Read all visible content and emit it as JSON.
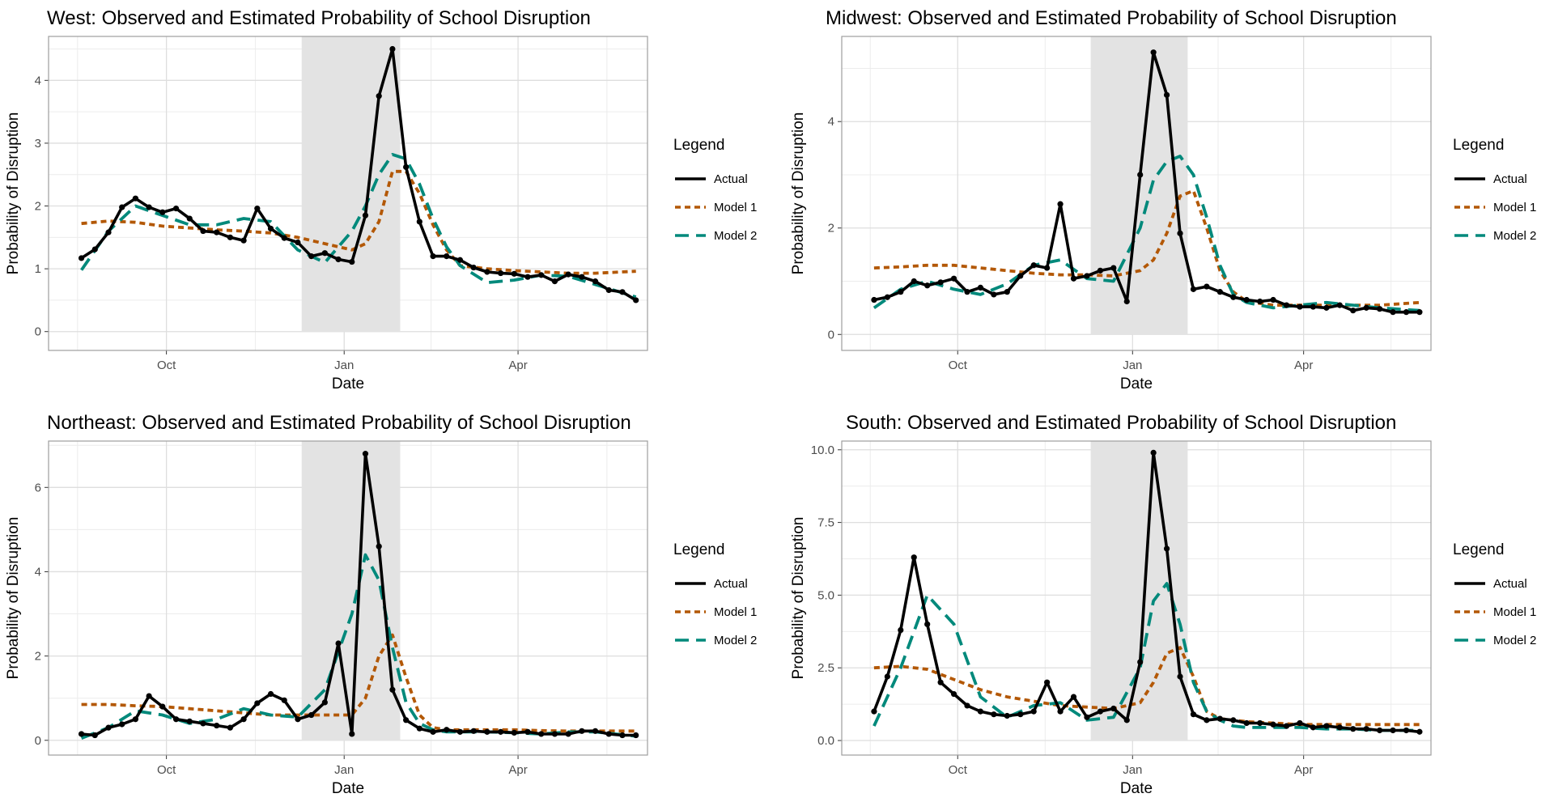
{
  "legend": {
    "title": "Legend",
    "items": [
      {
        "label": "Actual",
        "color": "#000000",
        "dash": "solid"
      },
      {
        "label": "Model 1",
        "color": "#b35806",
        "dash": "dotted"
      },
      {
        "label": "Model 2",
        "color": "#00897b",
        "dash": "dashed"
      }
    ]
  },
  "chart_data": [
    {
      "type": "line",
      "title": "West: Observed and Estimated Probability of School Disruption",
      "xlabel": "Date",
      "ylabel": "Probability of Disruption",
      "x_ticks": [
        "Oct",
        "Jan",
        "Apr"
      ],
      "y_ticks": [
        "0",
        "1",
        "2",
        "3",
        "4"
      ],
      "ylim": [
        -0.3,
        4.7
      ],
      "shaded_region": [
        "Dec 10",
        "Jan 30"
      ],
      "grid": true,
      "legend_position": "right",
      "series": [
        {
          "name": "Actual",
          "x": [
            "Aug 18",
            "Aug 25",
            "Sep 1",
            "Sep 8",
            "Sep 15",
            "Sep 22",
            "Sep 29",
            "Oct 6",
            "Oct 13",
            "Oct 20",
            "Oct 27",
            "Nov 3",
            "Nov 10",
            "Nov 17",
            "Nov 24",
            "Dec 1",
            "Dec 8",
            "Dec 15",
            "Dec 22",
            "Dec 29",
            "Jan 5",
            "Jan 12",
            "Jan 19",
            "Jan 26",
            "Feb 2",
            "Feb 9",
            "Feb 16",
            "Feb 23",
            "Mar 2",
            "Mar 9",
            "Mar 16",
            "Mar 23",
            "Mar 30",
            "Apr 6",
            "Apr 13",
            "Apr 20",
            "Apr 27",
            "May 4",
            "May 11",
            "May 18",
            "May 25",
            "Jun 1"
          ],
          "values": [
            1.17,
            1.31,
            1.58,
            1.98,
            2.12,
            1.98,
            1.9,
            1.96,
            1.8,
            1.6,
            1.58,
            1.5,
            1.45,
            1.96,
            1.64,
            1.49,
            1.42,
            1.2,
            1.25,
            1.15,
            1.11,
            1.85,
            3.75,
            4.5,
            2.62,
            1.75,
            1.2,
            1.2,
            1.14,
            1.02,
            0.95,
            0.93,
            0.92,
            0.87,
            0.9,
            0.8,
            0.91,
            0.87,
            0.8,
            0.66,
            0.63,
            0.5
          ]
        },
        {
          "name": "Model 1",
          "x": [
            "Aug 18",
            "Sep 1",
            "Sep 15",
            "Sep 29",
            "Oct 13",
            "Oct 27",
            "Nov 10",
            "Nov 24",
            "Dec 8",
            "Dec 22",
            "Jan 5",
            "Jan 12",
            "Jan 19",
            "Jan 26",
            "Feb 2",
            "Feb 9",
            "Feb 16",
            "Feb 23",
            "Mar 2",
            "Mar 16",
            "Mar 30",
            "Apr 13",
            "Apr 27",
            "May 11",
            "Jun 1"
          ],
          "values": [
            1.72,
            1.76,
            1.74,
            1.68,
            1.65,
            1.62,
            1.6,
            1.57,
            1.5,
            1.4,
            1.3,
            1.4,
            1.75,
            2.55,
            2.55,
            2.2,
            1.7,
            1.3,
            1.05,
            1.0,
            0.97,
            0.95,
            0.93,
            0.93,
            0.96
          ]
        },
        {
          "name": "Model 2",
          "x": [
            "Aug 18",
            "Sep 1",
            "Sep 15",
            "Sep 29",
            "Oct 13",
            "Oct 27",
            "Nov 10",
            "Nov 24",
            "Dec 8",
            "Dec 22",
            "Jan 5",
            "Jan 12",
            "Jan 19",
            "Jan 26",
            "Feb 2",
            "Feb 9",
            "Feb 16",
            "Feb 23",
            "Mar 2",
            "Mar 16",
            "Mar 30",
            "Apr 13",
            "Apr 27",
            "May 11",
            "Jun 1"
          ],
          "values": [
            0.98,
            1.6,
            2.0,
            1.85,
            1.7,
            1.7,
            1.8,
            1.75,
            1.3,
            1.1,
            1.6,
            2.0,
            2.5,
            2.82,
            2.75,
            2.35,
            1.8,
            1.35,
            1.05,
            0.78,
            0.82,
            0.9,
            0.88,
            0.75,
            0.55
          ]
        }
      ]
    },
    {
      "type": "line",
      "title": "Midwest: Observed and Estimated Probability of School Disruption",
      "xlabel": "Date",
      "ylabel": "Probability of Disruption",
      "x_ticks": [
        "Oct",
        "Jan",
        "Apr"
      ],
      "y_ticks": [
        "0",
        "2",
        "4"
      ],
      "ylim": [
        -0.3,
        5.6
      ],
      "shaded_region": [
        "Dec 10",
        "Jan 30"
      ],
      "grid": true,
      "legend_position": "right",
      "series": [
        {
          "name": "Actual",
          "x": [
            "Aug 18",
            "Aug 25",
            "Sep 1",
            "Sep 8",
            "Sep 15",
            "Sep 22",
            "Sep 29",
            "Oct 6",
            "Oct 13",
            "Oct 20",
            "Oct 27",
            "Nov 3",
            "Nov 10",
            "Nov 17",
            "Nov 24",
            "Dec 1",
            "Dec 8",
            "Dec 15",
            "Dec 22",
            "Dec 29",
            "Jan 5",
            "Jan 12",
            "Jan 19",
            "Jan 26",
            "Feb 2",
            "Feb 9",
            "Feb 16",
            "Feb 23",
            "Mar 2",
            "Mar 9",
            "Mar 16",
            "Mar 23",
            "Mar 30",
            "Apr 6",
            "Apr 13",
            "Apr 20",
            "Apr 27",
            "May 4",
            "May 11",
            "May 18",
            "May 25",
            "Jun 1"
          ],
          "values": [
            0.65,
            0.7,
            0.8,
            1.0,
            0.92,
            0.98,
            1.05,
            0.8,
            0.88,
            0.75,
            0.8,
            1.1,
            1.3,
            1.25,
            2.45,
            1.05,
            1.1,
            1.2,
            1.25,
            0.62,
            3.0,
            5.3,
            4.5,
            1.9,
            0.85,
            0.9,
            0.8,
            0.7,
            0.65,
            0.62,
            0.65,
            0.55,
            0.52,
            0.52,
            0.5,
            0.55,
            0.45,
            0.5,
            0.48,
            0.42,
            0.42,
            0.42
          ]
        },
        {
          "name": "Model 1",
          "x": [
            "Aug 18",
            "Sep 1",
            "Sep 15",
            "Sep 29",
            "Oct 13",
            "Oct 27",
            "Nov 10",
            "Nov 24",
            "Dec 8",
            "Dec 22",
            "Jan 5",
            "Jan 12",
            "Jan 19",
            "Jan 26",
            "Feb 2",
            "Feb 9",
            "Feb 16",
            "Feb 23",
            "Mar 2",
            "Mar 16",
            "Mar 30",
            "Apr 13",
            "Apr 27",
            "May 11",
            "Jun 1"
          ],
          "values": [
            1.25,
            1.27,
            1.3,
            1.3,
            1.25,
            1.2,
            1.15,
            1.12,
            1.12,
            1.1,
            1.2,
            1.4,
            1.9,
            2.6,
            2.7,
            2.0,
            1.2,
            0.8,
            0.62,
            0.55,
            0.55,
            0.55,
            0.55,
            0.55,
            0.6
          ]
        },
        {
          "name": "Model 2",
          "x": [
            "Aug 18",
            "Sep 1",
            "Sep 15",
            "Sep 29",
            "Oct 13",
            "Oct 27",
            "Nov 10",
            "Nov 24",
            "Dec 8",
            "Dec 22",
            "Jan 5",
            "Jan 12",
            "Jan 19",
            "Jan 26",
            "Feb 2",
            "Feb 9",
            "Feb 16",
            "Feb 23",
            "Mar 2",
            "Mar 16",
            "Mar 30",
            "Apr 13",
            "Apr 27",
            "May 11",
            "Jun 1"
          ],
          "values": [
            0.5,
            0.85,
            1.0,
            0.85,
            0.75,
            0.95,
            1.3,
            1.4,
            1.05,
            1.0,
            2.0,
            2.9,
            3.25,
            3.35,
            3.0,
            2.2,
            1.3,
            0.75,
            0.6,
            0.5,
            0.55,
            0.6,
            0.55,
            0.5,
            0.45
          ]
        }
      ]
    },
    {
      "type": "line",
      "title": "Northeast: Observed and Estimated Probability of School Disruption",
      "xlabel": "Date",
      "ylabel": "Probability of Disruption",
      "x_ticks": [
        "Oct",
        "Jan",
        "Apr"
      ],
      "y_ticks": [
        "0",
        "2",
        "4",
        "6"
      ],
      "ylim": [
        -0.35,
        7.1
      ],
      "shaded_region": [
        "Dec 10",
        "Jan 30"
      ],
      "grid": true,
      "legend_position": "right",
      "series": [
        {
          "name": "Actual",
          "x": [
            "Aug 18",
            "Aug 25",
            "Sep 1",
            "Sep 8",
            "Sep 15",
            "Sep 22",
            "Sep 29",
            "Oct 6",
            "Oct 13",
            "Oct 20",
            "Oct 27",
            "Nov 3",
            "Nov 10",
            "Nov 17",
            "Nov 24",
            "Dec 1",
            "Dec 8",
            "Dec 15",
            "Dec 22",
            "Dec 29",
            "Jan 5",
            "Jan 12",
            "Jan 19",
            "Jan 26",
            "Feb 2",
            "Feb 9",
            "Feb 16",
            "Feb 23",
            "Mar 2",
            "Mar 9",
            "Mar 16",
            "Mar 23",
            "Mar 30",
            "Apr 6",
            "Apr 13",
            "Apr 20",
            "Apr 27",
            "May 4",
            "May 11",
            "May 18",
            "May 25",
            "Jun 1"
          ],
          "values": [
            0.15,
            0.12,
            0.3,
            0.38,
            0.5,
            1.05,
            0.8,
            0.5,
            0.45,
            0.4,
            0.35,
            0.3,
            0.5,
            0.88,
            1.1,
            0.95,
            0.5,
            0.6,
            0.9,
            2.3,
            0.15,
            6.8,
            4.6,
            1.2,
            0.48,
            0.28,
            0.2,
            0.25,
            0.2,
            0.22,
            0.2,
            0.2,
            0.18,
            0.2,
            0.15,
            0.15,
            0.15,
            0.22,
            0.22,
            0.15,
            0.12,
            0.12
          ]
        },
        {
          "name": "Model 1",
          "x": [
            "Aug 18",
            "Sep 1",
            "Sep 15",
            "Sep 29",
            "Oct 13",
            "Oct 27",
            "Nov 10",
            "Nov 24",
            "Dec 8",
            "Dec 22",
            "Jan 5",
            "Jan 12",
            "Jan 19",
            "Jan 26",
            "Feb 2",
            "Feb 9",
            "Feb 16",
            "Feb 23",
            "Mar 2",
            "Mar 16",
            "Mar 30",
            "Apr 13",
            "Apr 27",
            "May 11",
            "Jun 1"
          ],
          "values": [
            0.85,
            0.85,
            0.82,
            0.8,
            0.75,
            0.7,
            0.65,
            0.6,
            0.6,
            0.6,
            0.6,
            1.0,
            2.0,
            2.5,
            1.5,
            0.6,
            0.3,
            0.25,
            0.25,
            0.25,
            0.25,
            0.23,
            0.22,
            0.22,
            0.22
          ]
        },
        {
          "name": "Model 2",
          "x": [
            "Aug 18",
            "Sep 1",
            "Sep 15",
            "Sep 29",
            "Oct 13",
            "Oct 27",
            "Nov 10",
            "Nov 24",
            "Dec 8",
            "Dec 22",
            "Jan 5",
            "Jan 12",
            "Jan 19",
            "Jan 26",
            "Feb 2",
            "Feb 9",
            "Feb 16",
            "Feb 23",
            "Mar 2",
            "Mar 16",
            "Mar 30",
            "Apr 13",
            "Apr 27",
            "May 11",
            "Jun 1"
          ],
          "values": [
            0.05,
            0.3,
            0.7,
            0.6,
            0.4,
            0.5,
            0.75,
            0.6,
            0.55,
            1.2,
            3.0,
            4.4,
            3.8,
            2.2,
            0.9,
            0.4,
            0.25,
            0.2,
            0.2,
            0.2,
            0.18,
            0.15,
            0.2,
            0.2,
            0.1
          ]
        }
      ]
    },
    {
      "type": "line",
      "title": "South: Observed and Estimated Probability of School Disruption",
      "xlabel": "Date",
      "ylabel": "Probability of Disruption",
      "x_ticks": [
        "Oct",
        "Jan",
        "Apr"
      ],
      "y_ticks": [
        "0.0",
        "2.5",
        "5.0",
        "7.5",
        "10.0"
      ],
      "ylim": [
        -0.5,
        10.3
      ],
      "shaded_region": [
        "Dec 10",
        "Jan 30"
      ],
      "grid": true,
      "legend_position": "right",
      "series": [
        {
          "name": "Actual",
          "x": [
            "Aug 18",
            "Aug 25",
            "Sep 1",
            "Sep 8",
            "Sep 15",
            "Sep 22",
            "Sep 29",
            "Oct 6",
            "Oct 13",
            "Oct 20",
            "Oct 27",
            "Nov 3",
            "Nov 10",
            "Nov 17",
            "Nov 24",
            "Dec 1",
            "Dec 8",
            "Dec 15",
            "Dec 22",
            "Dec 29",
            "Jan 5",
            "Jan 12",
            "Jan 19",
            "Jan 26",
            "Feb 2",
            "Feb 9",
            "Feb 16",
            "Feb 23",
            "Mar 2",
            "Mar 9",
            "Mar 16",
            "Mar 23",
            "Mar 30",
            "Apr 6",
            "Apr 13",
            "Apr 20",
            "Apr 27",
            "May 4",
            "May 11",
            "May 18",
            "May 25",
            "Jun 1"
          ],
          "values": [
            1.0,
            2.2,
            3.8,
            6.3,
            4.0,
            2.0,
            1.6,
            1.2,
            1.0,
            0.9,
            0.85,
            0.9,
            1.0,
            2.0,
            1.0,
            1.5,
            0.8,
            1.0,
            1.1,
            0.7,
            2.7,
            9.9,
            6.6,
            2.2,
            0.9,
            0.7,
            0.75,
            0.7,
            0.6,
            0.6,
            0.55,
            0.5,
            0.6,
            0.45,
            0.5,
            0.45,
            0.4,
            0.4,
            0.35,
            0.35,
            0.35,
            0.3
          ]
        },
        {
          "name": "Model 1",
          "x": [
            "Aug 18",
            "Sep 1",
            "Sep 15",
            "Sep 29",
            "Oct 13",
            "Oct 27",
            "Nov 10",
            "Nov 24",
            "Dec 8",
            "Dec 22",
            "Jan 5",
            "Jan 12",
            "Jan 19",
            "Jan 26",
            "Feb 2",
            "Feb 9",
            "Feb 16",
            "Feb 23",
            "Mar 2",
            "Mar 16",
            "Mar 30",
            "Apr 13",
            "Apr 27",
            "May 11",
            "Jun 1"
          ],
          "values": [
            2.5,
            2.55,
            2.45,
            2.1,
            1.75,
            1.5,
            1.35,
            1.2,
            1.15,
            1.1,
            1.3,
            2.0,
            3.0,
            3.2,
            2.2,
            1.0,
            0.75,
            0.7,
            0.65,
            0.6,
            0.55,
            0.55,
            0.55,
            0.55,
            0.55
          ]
        },
        {
          "name": "Model 2",
          "x": [
            "Aug 18",
            "Sep 1",
            "Sep 15",
            "Sep 29",
            "Oct 13",
            "Oct 27",
            "Nov 10",
            "Nov 24",
            "Dec 8",
            "Dec 22",
            "Jan 5",
            "Jan 12",
            "Jan 19",
            "Jan 26",
            "Feb 2",
            "Feb 9",
            "Feb 16",
            "Feb 23",
            "Mar 2",
            "Mar 16",
            "Mar 30",
            "Apr 13",
            "Apr 27",
            "May 11",
            "Jun 1"
          ],
          "values": [
            0.5,
            2.5,
            5.0,
            4.0,
            1.5,
            0.8,
            1.2,
            1.3,
            0.7,
            0.8,
            2.5,
            4.8,
            5.4,
            4.0,
            2.0,
            1.0,
            0.7,
            0.5,
            0.45,
            0.45,
            0.45,
            0.4,
            0.4,
            0.35,
            0.35
          ]
        }
      ]
    }
  ]
}
